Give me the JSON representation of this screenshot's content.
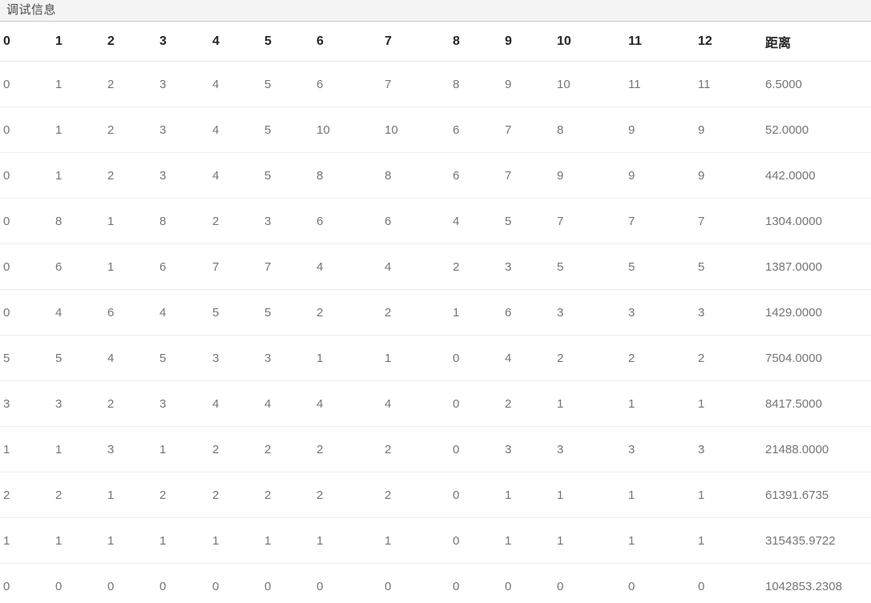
{
  "panel": {
    "title": "调试信息"
  },
  "chart_data": {
    "type": "table",
    "title": "调试信息",
    "columns": [
      "0",
      "1",
      "2",
      "3",
      "4",
      "5",
      "6",
      "7",
      "8",
      "9",
      "10",
      "11",
      "12",
      "距离"
    ],
    "rows": [
      [
        "0",
        "1",
        "2",
        "3",
        "4",
        "5",
        "6",
        "7",
        "8",
        "9",
        "10",
        "11",
        "11",
        "6.5000"
      ],
      [
        "0",
        "1",
        "2",
        "3",
        "4",
        "5",
        "10",
        "10",
        "6",
        "7",
        "8",
        "9",
        "9",
        "52.0000"
      ],
      [
        "0",
        "1",
        "2",
        "3",
        "4",
        "5",
        "8",
        "8",
        "6",
        "7",
        "9",
        "9",
        "9",
        "442.0000"
      ],
      [
        "0",
        "8",
        "1",
        "8",
        "2",
        "3",
        "6",
        "6",
        "4",
        "5",
        "7",
        "7",
        "7",
        "1304.0000"
      ],
      [
        "0",
        "6",
        "1",
        "6",
        "7",
        "7",
        "4",
        "4",
        "2",
        "3",
        "5",
        "5",
        "5",
        "1387.0000"
      ],
      [
        "0",
        "4",
        "6",
        "4",
        "5",
        "5",
        "2",
        "2",
        "1",
        "6",
        "3",
        "3",
        "3",
        "1429.0000"
      ],
      [
        "5",
        "5",
        "4",
        "5",
        "3",
        "3",
        "1",
        "1",
        "0",
        "4",
        "2",
        "2",
        "2",
        "7504.0000"
      ],
      [
        "3",
        "3",
        "2",
        "3",
        "4",
        "4",
        "4",
        "4",
        "0",
        "2",
        "1",
        "1",
        "1",
        "8417.5000"
      ],
      [
        "1",
        "1",
        "3",
        "1",
        "2",
        "2",
        "2",
        "2",
        "0",
        "3",
        "3",
        "3",
        "3",
        "21488.0000"
      ],
      [
        "2",
        "2",
        "1",
        "2",
        "2",
        "2",
        "2",
        "2",
        "0",
        "1",
        "1",
        "1",
        "1",
        "61391.6735"
      ],
      [
        "1",
        "1",
        "1",
        "1",
        "1",
        "1",
        "1",
        "1",
        "0",
        "1",
        "1",
        "1",
        "1",
        "315435.9722"
      ],
      [
        "0",
        "0",
        "0",
        "0",
        "0",
        "0",
        "0",
        "0",
        "0",
        "0",
        "0",
        "0",
        "0",
        "1042853.2308"
      ]
    ]
  },
  "colors": {
    "title_bar_bg": "#f4f4f4",
    "title_bar_border": "#c9c9c9",
    "header_text": "#262626",
    "cell_text": "#757575",
    "row_border": "#ededed"
  }
}
